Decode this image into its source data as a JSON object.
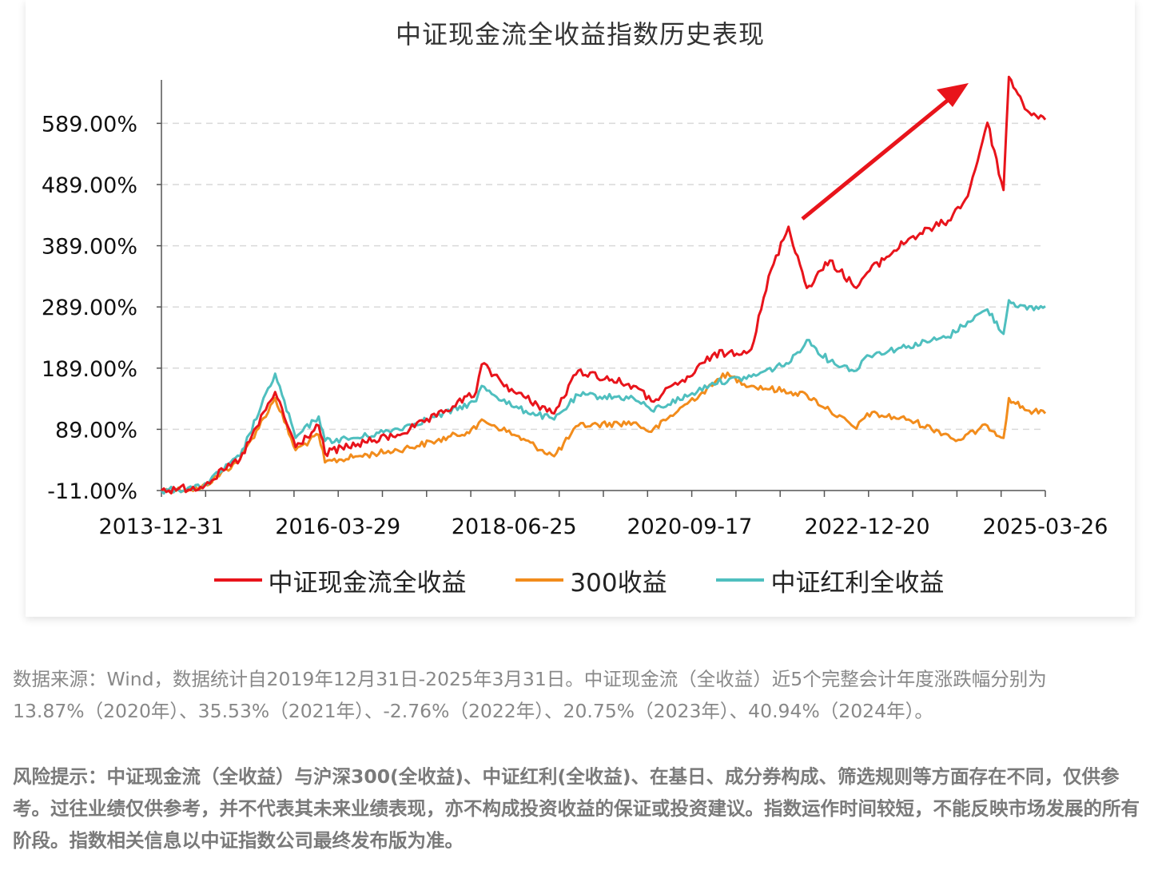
{
  "chart_data": {
    "type": "line",
    "title": "中证现金流全收益指数历史表现",
    "y_tick_labels": [
      "589.00%",
      "489.00%",
      "389.00%",
      "289.00%",
      "189.00%",
      "89.00%",
      "-11.00%"
    ],
    "y_ticks": [
      589,
      489,
      389,
      289,
      189,
      89,
      -11
    ],
    "ylim": [
      -11,
      660
    ],
    "x_tick_labels": [
      "2013-12-31",
      "2016-03-29",
      "2018-06-25",
      "2020-09-17",
      "2022-12-20",
      "2025-03-26"
    ],
    "grid": "horizontal dashed",
    "legend_position": "bottom",
    "series": [
      {
        "name": "中证现金流全收益",
        "color": "#e8141b",
        "points": [
          [
            "2013-12-31",
            -11
          ],
          [
            "2014-06-30",
            -5
          ],
          [
            "2014-12-31",
            40
          ],
          [
            "2015-06-12",
            150
          ],
          [
            "2015-09-15",
            60
          ],
          [
            "2015-12-31",
            95
          ],
          [
            "2016-01-29",
            50
          ],
          [
            "2016-06-30",
            65
          ],
          [
            "2016-12-31",
            80
          ],
          [
            "2017-06-30",
            110
          ],
          [
            "2017-12-31",
            150
          ],
          [
            "2018-01-26",
            195
          ],
          [
            "2018-06-25",
            150
          ],
          [
            "2018-12-28",
            115
          ],
          [
            "2019-04-19",
            185
          ],
          [
            "2019-12-31",
            160
          ],
          [
            "2020-03-23",
            135
          ],
          [
            "2020-09-17",
            175
          ],
          [
            "2020-12-31",
            210
          ],
          [
            "2021-06-30",
            220
          ],
          [
            "2021-09-30",
            350
          ],
          [
            "2021-12-20",
            420
          ],
          [
            "2022-03-15",
            320
          ],
          [
            "2022-06-30",
            365
          ],
          [
            "2022-10-31",
            320
          ],
          [
            "2022-12-20",
            345
          ],
          [
            "2023-06-30",
            400
          ],
          [
            "2023-12-31",
            430
          ],
          [
            "2024-03-31",
            470
          ],
          [
            "2024-06-30",
            590
          ],
          [
            "2024-09-13",
            480
          ],
          [
            "2024-10-08",
            665
          ],
          [
            "2024-12-31",
            610
          ],
          [
            "2025-03-26",
            595
          ]
        ]
      },
      {
        "name": "300收益",
        "color": "#f28c1c",
        "points": [
          [
            "2013-12-31",
            -11
          ],
          [
            "2014-06-30",
            -8
          ],
          [
            "2014-12-31",
            40
          ],
          [
            "2015-06-12",
            140
          ],
          [
            "2015-09-15",
            55
          ],
          [
            "2015-12-31",
            80
          ],
          [
            "2016-01-29",
            35
          ],
          [
            "2016-06-30",
            45
          ],
          [
            "2016-12-31",
            55
          ],
          [
            "2017-06-30",
            70
          ],
          [
            "2017-12-31",
            90
          ],
          [
            "2018-01-26",
            105
          ],
          [
            "2018-06-25",
            80
          ],
          [
            "2018-12-28",
            45
          ],
          [
            "2019-04-19",
            95
          ],
          [
            "2019-12-31",
            100
          ],
          [
            "2020-03-23",
            85
          ],
          [
            "2020-09-17",
            135
          ],
          [
            "2020-12-31",
            160
          ],
          [
            "2021-02-18",
            180
          ],
          [
            "2021-06-30",
            160
          ],
          [
            "2021-12-31",
            150
          ],
          [
            "2022-03-15",
            145
          ],
          [
            "2022-06-30",
            120
          ],
          [
            "2022-10-31",
            90
          ],
          [
            "2022-12-20",
            115
          ],
          [
            "2023-06-30",
            105
          ],
          [
            "2023-12-31",
            80
          ],
          [
            "2024-02-05",
            70
          ],
          [
            "2024-06-30",
            95
          ],
          [
            "2024-09-13",
            75
          ],
          [
            "2024-10-08",
            140
          ],
          [
            "2024-12-31",
            120
          ],
          [
            "2025-03-26",
            115
          ]
        ]
      },
      {
        "name": "中证红利全收益",
        "color": "#4fbfbf",
        "points": [
          [
            "2013-12-31",
            -11
          ],
          [
            "2014-06-30",
            -6
          ],
          [
            "2014-12-31",
            45
          ],
          [
            "2015-06-12",
            180
          ],
          [
            "2015-09-15",
            75
          ],
          [
            "2015-12-31",
            110
          ],
          [
            "2016-01-29",
            70
          ],
          [
            "2016-06-30",
            75
          ],
          [
            "2016-12-31",
            90
          ],
          [
            "2017-06-30",
            110
          ],
          [
            "2017-12-31",
            135
          ],
          [
            "2018-01-26",
            160
          ],
          [
            "2018-06-25",
            125
          ],
          [
            "2018-12-28",
            105
          ],
          [
            "2019-04-19",
            145
          ],
          [
            "2019-12-31",
            140
          ],
          [
            "2020-03-23",
            120
          ],
          [
            "2020-09-17",
            145
          ],
          [
            "2020-12-31",
            165
          ],
          [
            "2021-06-30",
            175
          ],
          [
            "2021-12-31",
            200
          ],
          [
            "2022-03-15",
            235
          ],
          [
            "2022-06-30",
            200
          ],
          [
            "2022-10-31",
            185
          ],
          [
            "2022-12-20",
            210
          ],
          [
            "2023-06-30",
            225
          ],
          [
            "2023-12-31",
            240
          ],
          [
            "2024-03-31",
            265
          ],
          [
            "2024-06-30",
            285
          ],
          [
            "2024-09-13",
            245
          ],
          [
            "2024-10-08",
            300
          ],
          [
            "2024-12-31",
            285
          ],
          [
            "2025-03-26",
            290
          ]
        ]
      }
    ]
  },
  "notes": {
    "source": "数据来源：Wind，数据统计自2019年12月31日-2025年3月31日。中证现金流（全收益）近5个完整会计年度涨跌幅分别为13.87%（2020年）、35.53%（2021年）、-2.76%（2022年）、20.75%（2023年）、40.94%（2024年）。",
    "risk": "风险提示：中证现金流（全收益）与沪深300(全收益)、中证红利(全收益)、在基日、成分券构成、筛选规则等方面存在不同，仅供参考。过往业绩仅供参考，并不代表其未来业绩表现，亦不构成投资收益的保证或投资建议。指数运作时间较短，不能反映市场发展的所有阶段。指数相关信息以中证指数公司最终发布版为准。"
  },
  "colors": {
    "grid": "#d9d9d9",
    "axis": "#555555",
    "arrow": "#e8141b"
  }
}
